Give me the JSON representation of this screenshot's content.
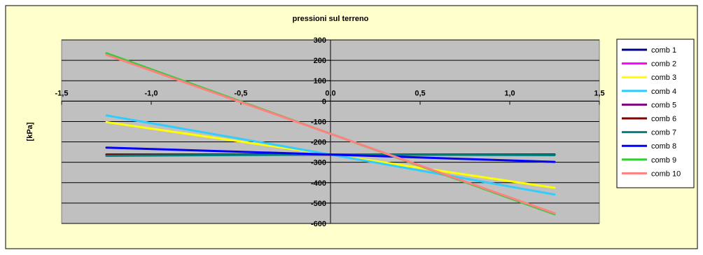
{
  "chart_data": {
    "type": "line",
    "title": "pressioni sul terreno",
    "ylabel": "[kPa]",
    "xlabel": "",
    "xlim": [
      -1.5,
      1.5
    ],
    "ylim": [
      -600,
      300
    ],
    "x_ticks": [
      -1.5,
      -1.0,
      -0.5,
      0.0,
      0.5,
      1.0,
      1.5
    ],
    "x_tick_labels": [
      "-1,5",
      "-1,0",
      "-0,5",
      "0,0",
      "0,5",
      "1,0",
      "1,5"
    ],
    "y_ticks": [
      300,
      200,
      100,
      0,
      -100,
      -200,
      -300,
      -400,
      -500,
      -600
    ],
    "y_tick_labels": [
      "300",
      "200",
      "100",
      "0",
      "-100",
      "-200",
      "-300",
      "-400",
      "-500",
      "-600"
    ],
    "grid": "horizontal",
    "legend_position": "right",
    "colors": {
      "outer_background": "#FFFFCC",
      "plot_background": "#C0C0C0",
      "gridline": "#000000"
    },
    "series": [
      {
        "name": "comb 1",
        "color": "#000080",
        "x": [
          -1.25,
          0.0,
          1.25
        ],
        "y": [
          -262,
          -262,
          -262
        ]
      },
      {
        "name": "comb 2",
        "color": "#FF00FF",
        "x": [
          -1.25,
          0.0,
          1.25
        ],
        "y": [
          -262,
          -262,
          -262
        ]
      },
      {
        "name": "comb 3",
        "color": "#FFFF00",
        "x": [
          -1.25,
          0.0,
          1.25
        ],
        "y": [
          -103,
          -262,
          -425
        ]
      },
      {
        "name": "comb 4",
        "color": "#33CCFF",
        "x": [
          -1.25,
          0.0,
          1.25
        ],
        "y": [
          -70,
          -262,
          -458
        ]
      },
      {
        "name": "comb 5",
        "color": "#800080",
        "x": [
          -1.25,
          0.0,
          1.25
        ],
        "y": [
          -262,
          -262,
          -262
        ]
      },
      {
        "name": "comb 6",
        "color": "#800000",
        "x": [
          -1.25,
          0.0,
          1.25
        ],
        "y": [
          -262,
          -262,
          -262
        ]
      },
      {
        "name": "comb 7",
        "color": "#008080",
        "x": [
          -1.25,
          0.0,
          1.25
        ],
        "y": [
          -268,
          -262,
          -265
        ]
      },
      {
        "name": "comb 8",
        "color": "#0000FF",
        "x": [
          -1.25,
          0.0,
          1.25
        ],
        "y": [
          -228,
          -262,
          -298
        ]
      },
      {
        "name": "comb 9",
        "color": "#33CC33",
        "x": [
          -1.25,
          0.0,
          1.25
        ],
        "y": [
          235,
          -160,
          -555
        ]
      },
      {
        "name": "comb 10",
        "color": "#FF8080",
        "x": [
          -1.25,
          0.0,
          1.25
        ],
        "y": [
          227,
          -160,
          -550
        ]
      }
    ]
  }
}
